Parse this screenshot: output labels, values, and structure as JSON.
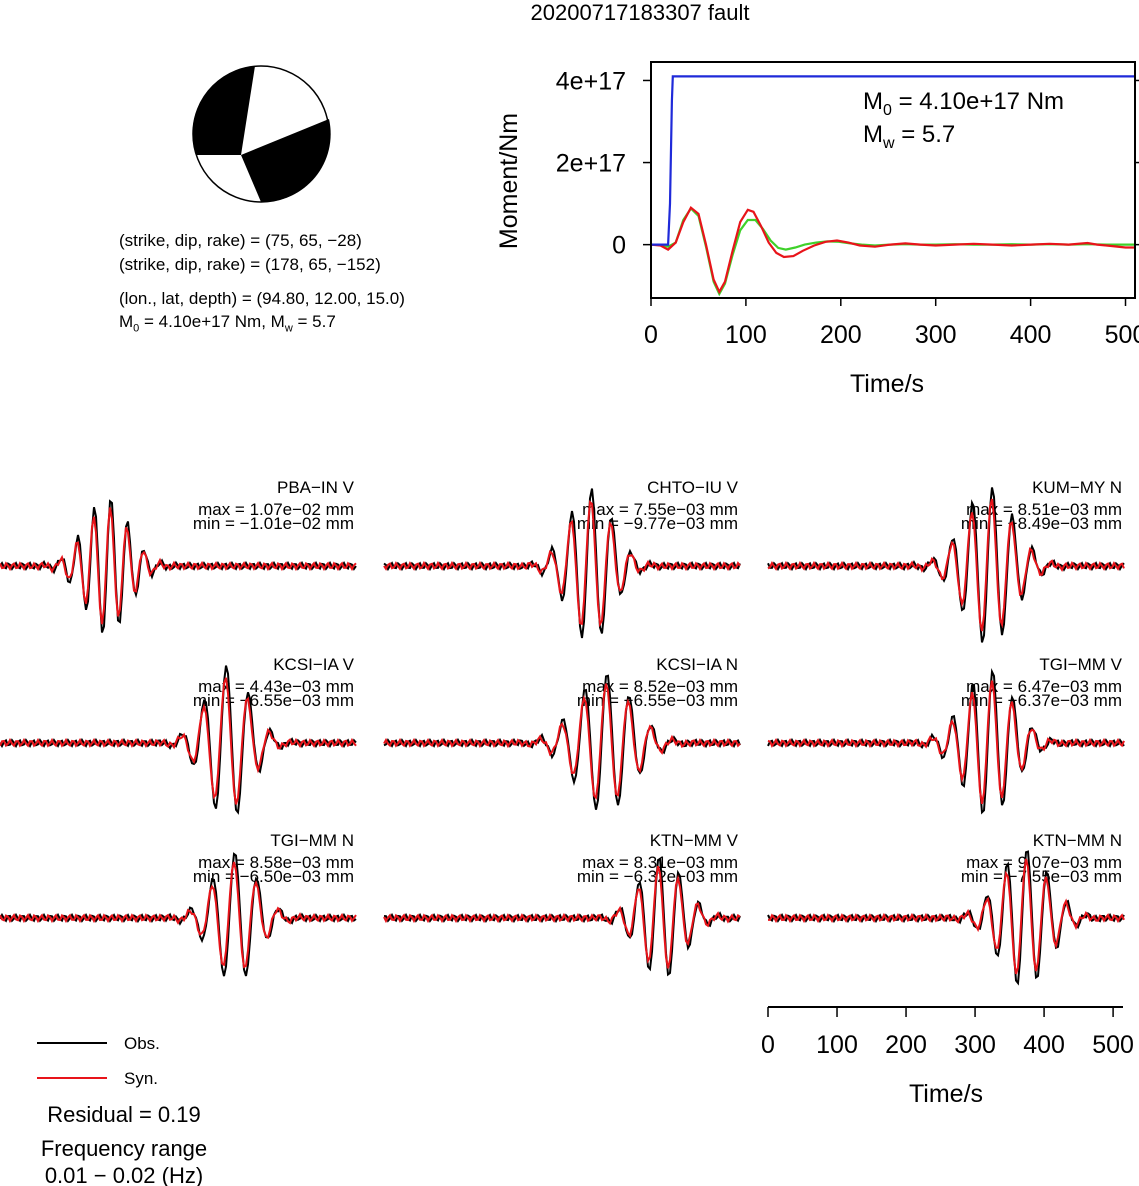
{
  "title": "20200717183307 fault",
  "beachball": {
    "nodal_planes": [
      "(strike, dip, rake) = (75, 65, −28)",
      "(strike, dip, rake) = (178, 65, −152)"
    ],
    "location": "(lon., lat, depth) = (94.80, 12.00, 15.0)",
    "moment_line": {
      "m0_prefix": "M",
      "m0_sub": "0",
      "m0_value": " = 4.10e+17 Nm, M",
      "mw_sub": "w",
      "mw_value": " = 5.7"
    },
    "fill_color": "#000000"
  },
  "colors": {
    "obs": "#000000",
    "syn": "#e8141a",
    "stf": "#1f2ad9",
    "rate": "#3fd12a"
  },
  "chart_data": [
    {
      "type": "line",
      "title": "",
      "xlabel": "Time/s",
      "ylabel": "Moment/Nm",
      "xlim": [
        0,
        510
      ],
      "ylim": [
        -1.3e+17,
        4.45e+17
      ],
      "xticks": [
        0,
        100,
        200,
        300,
        400,
        500
      ],
      "yticks": [
        {
          "v": 0,
          "label": "0"
        },
        {
          "v": 2e+17,
          "label": "2e+17"
        },
        {
          "v": 4e+17,
          "label": "4e+17"
        }
      ],
      "annotation": {
        "m0_label": "M",
        "m0_sub": "0",
        "m0_value": " = 4.10e+17 Nm",
        "mw_label": "M",
        "mw_sub": "w",
        "mw_value": " = 5.7"
      },
      "series": [
        {
          "key": "stf",
          "x": [
            0,
            18,
            20,
            22,
            23,
            510
          ],
          "y": [
            0,
            0,
            1e+17,
            3.5e+17,
            4.1e+17,
            4.1e+17
          ]
        },
        {
          "key": "syn",
          "x": [
            0,
            10,
            18,
            26,
            34,
            42,
            50,
            58,
            66,
            72,
            78,
            86,
            94,
            102,
            108,
            116,
            124,
            132,
            140,
            150,
            160,
            172,
            184,
            196,
            208,
            220,
            236,
            252,
            268,
            284,
            300,
            320,
            340,
            360,
            380,
            400,
            420,
            440,
            460,
            470,
            480,
            500,
            510
          ],
          "y": [
            0,
            -2000000000000000.0,
            -1.2e+16,
            5000000000000000.0,
            5.5e+16,
            9e+16,
            7.5e+16,
            0.0,
            -8.5e+16,
            -1.15e+17,
            -9e+16,
            -1.5e+16,
            5.5e+16,
            8.5e+16,
            8e+16,
            4.5e+16,
            5000000000000000.0,
            -2e+16,
            -3e+16,
            -2.8e+16,
            -1.5e+16,
            -2000000000000000.0,
            7000000000000000.0,
            1e+16,
            5000000000000000.0,
            -2000000000000000.0,
            -5000000000000000.0,
            0.0,
            3000000000000000.0,
            0.0,
            -2000000000000000.0,
            0.0,
            2000000000000000.0,
            0.0,
            -2000000000000000.0,
            0.0,
            2000000000000000.0,
            0.0,
            4000000000000000.0,
            0.0,
            -2000000000000000.0,
            -7000000000000000.0,
            -7000000000000000.0
          ]
        },
        {
          "key": "rate",
          "x": [
            0,
            10,
            18,
            26,
            34,
            42,
            50,
            58,
            66,
            72,
            78,
            86,
            94,
            102,
            110,
            118,
            126,
            134,
            142,
            152,
            162,
            174,
            186,
            198,
            210,
            222,
            236,
            252,
            268,
            284,
            300,
            320,
            340,
            360,
            380,
            400,
            420,
            440,
            460,
            480,
            500,
            510
          ],
          "y": [
            0,
            0,
            -5000000000000000.0,
            5000000000000000.0,
            6e+16,
            8.8e+16,
            7e+16,
            -5000000000000000.0,
            -9e+16,
            -1.2e+17,
            -9.5e+16,
            -2.5e+16,
            3.5e+16,
            6e+16,
            6e+16,
            3.8e+16,
            1e+16,
            -8000000000000000.0,
            -1.2e+16,
            -7000000000000000.0,
            0.0,
            5000000000000000.0,
            8000000000000000.0,
            7000000000000000.0,
            3000000000000000.0,
            0.0,
            -2000000000000000.0,
            0.0,
            1000000000000000.0,
            0.0,
            0.0,
            1000000000000000.0,
            0.0,
            0.0,
            1000000000000000.0,
            0.0,
            1000000000000000.0,
            0.0,
            1000000000000000.0,
            0.0,
            0.0,
            0.0
          ]
        }
      ]
    }
  ],
  "waveforms": {
    "stations": [
      {
        "name": "PBA−IN V",
        "max": "max = 1.07e−02 mm",
        "min": "min = −1.01e−02 mm"
      },
      {
        "name": "CHTO−IU V",
        "max": "max = 7.55e−03 mm",
        "min": "min = −9.77e−03 mm"
      },
      {
        "name": "KUM−MY N",
        "max": "max = 8.51e−03 mm",
        "min": "min = −8.49e−03 mm"
      },
      {
        "name": "KCSI−IA V",
        "max": "max = 4.43e−03 mm",
        "min": "min = −6.55e−03 mm"
      },
      {
        "name": "KCSI−IA N",
        "max": "max = 8.52e−03 mm",
        "min": "min = −6.55e−03 mm"
      },
      {
        "name": "TGI−MM V",
        "max": "max = 6.47e−03 mm",
        "min": "min = −6.37e−03 mm"
      },
      {
        "name": "TGI−MM N",
        "max": "max = 8.58e−03 mm",
        "min": "min = −6.50e−03 mm"
      },
      {
        "name": "KTN−MM V",
        "max": "max = 8.31e−03 mm",
        "min": "min = −6.32e−03 mm"
      },
      {
        "name": "KTN−MM N",
        "max": "max = 9.07e−03 mm",
        "min": "min = −7.55e−03 mm"
      }
    ],
    "time_axis": {
      "label": "Time/s",
      "xlim": [
        0,
        510
      ],
      "ticks": [
        0,
        100,
        200,
        300,
        400,
        500
      ]
    }
  },
  "legend": {
    "obs": "Obs.",
    "syn": "Syn."
  },
  "residual": "Residual = 0.19",
  "frequency": {
    "label": "Frequency range",
    "value": "0.01 − 0.02 (Hz)"
  }
}
